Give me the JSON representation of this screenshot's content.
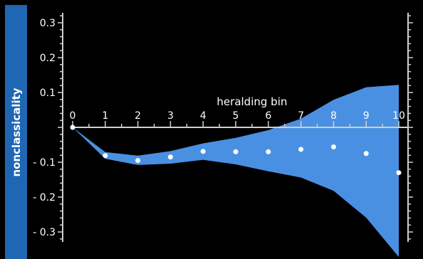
{
  "chart_data": {
    "type": "line",
    "xlabel": "heralding bin",
    "ylabel": "nonclassicality",
    "x_ticks": [
      "0",
      "1",
      "2",
      "3",
      "4",
      "5",
      "6",
      "7",
      "8",
      "9",
      "10"
    ],
    "y_ticks": [
      {
        "value": 0.3,
        "label": "0.3"
      },
      {
        "value": 0.2,
        "label": "0.2"
      },
      {
        "value": 0.1,
        "label": "0.1"
      },
      {
        "value": -0.1,
        "label": "- 0.1"
      },
      {
        "value": -0.2,
        "label": "- 0.2"
      },
      {
        "value": -0.3,
        "label": "- 0.3"
      }
    ],
    "xlim": [
      0,
      10
    ],
    "ylim": [
      -0.37,
      0.35
    ],
    "series": [
      {
        "type": "scatter",
        "x": [
          0,
          1,
          2,
          3,
          4,
          5,
          6,
          7,
          8,
          9,
          10
        ],
        "y": [
          0.0,
          -0.081,
          -0.095,
          -0.085,
          -0.069,
          -0.07,
          -0.07,
          -0.063,
          -0.056,
          -0.075,
          -0.13
        ]
      }
    ],
    "band": {
      "x": [
        0,
        1,
        2,
        3,
        4,
        5,
        6,
        7,
        8,
        9,
        10
      ],
      "upper": [
        0.0,
        -0.071,
        -0.081,
        -0.068,
        -0.046,
        -0.03,
        -0.008,
        0.025,
        0.079,
        0.115,
        0.122
      ],
      "lower": [
        0.0,
        -0.09,
        -0.108,
        -0.104,
        -0.093,
        -0.106,
        -0.126,
        -0.144,
        -0.182,
        -0.259,
        -0.372
      ]
    },
    "colors": {
      "band": "#4a90e2",
      "points": "#ffffff",
      "axis": "#cfcfcf",
      "label_bar": "#1f66b3"
    },
    "grid": false
  }
}
